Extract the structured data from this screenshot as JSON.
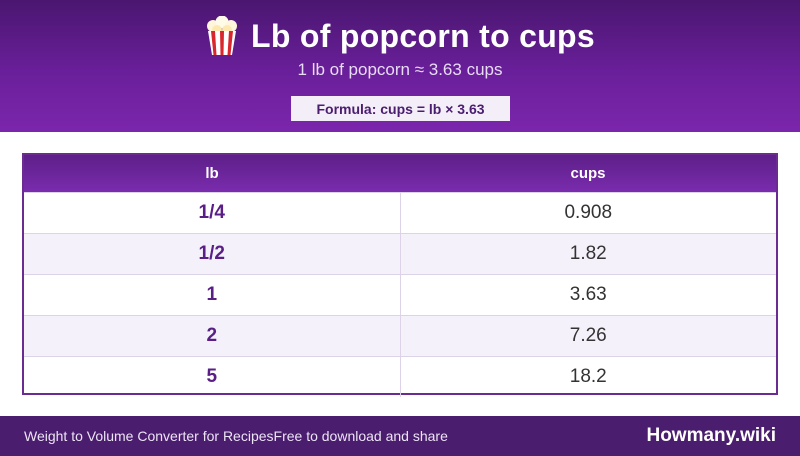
{
  "header": {
    "icon": "popcorn-icon",
    "title": "Lb of popcorn to cups",
    "subtitle": "1 lb of popcorn ≈ 3.63 cups",
    "formula": "Formula: cups = lb × 3.63"
  },
  "table": {
    "columns": [
      "lb",
      "cups"
    ],
    "rows": [
      {
        "lb": "1/4",
        "cups": "0.908"
      },
      {
        "lb": "1/2",
        "cups": "1.82"
      },
      {
        "lb": "1",
        "cups": "3.63"
      },
      {
        "lb": "2",
        "cups": "7.26"
      },
      {
        "lb": "5",
        "cups": "18.2"
      }
    ]
  },
  "footer": {
    "left_text_1": "Weight to Volume Converter for Recipes",
    "left_text_2": "Free to download and share",
    "brand": "Howmany.wiki"
  },
  "colors": {
    "header_purple": "#6a1f9a",
    "footer_purple": "#4b1d6f",
    "accent_text": "#5a1f86"
  }
}
